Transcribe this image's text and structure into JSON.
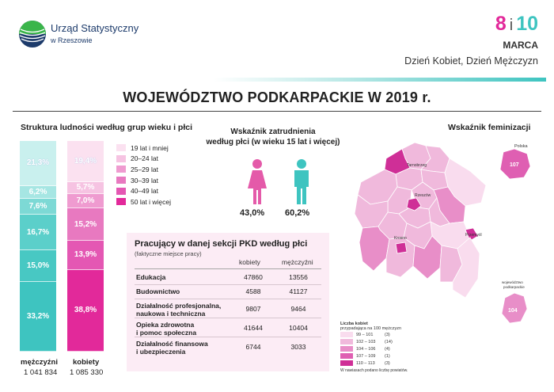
{
  "header": {
    "org_name": "Urząd Statystyczny",
    "org_sub": "w Rzeszowie",
    "date_8": "8",
    "date_i": "i",
    "date_10": "10",
    "month": "MARCA",
    "day_title": "Dzień Kobiet, Dzień Mężczyzn"
  },
  "main_title": "WOJEWÓDZTWO PODKARPACKIE W 2019 r.",
  "structure": {
    "title": "Struktura ludności według grup wieku i płci",
    "men": {
      "label": "mężczyźni",
      "count": "1 041 834",
      "segments": [
        "21,3%",
        "6,2%",
        "7,6%",
        "16,7%",
        "15,0%",
        "33,2%"
      ]
    },
    "women": {
      "label": "kobiety",
      "count": "1 085 330",
      "segments": [
        "19,4%",
        "5,7%",
        "7,0%",
        "15,2%",
        "13,9%",
        "38,8%"
      ]
    },
    "legend": [
      "19 lat i mniej",
      "20–24 lat",
      "25–29 lat",
      "30–39 lat",
      "40–49 lat",
      "50 lat i więcej"
    ],
    "men_colors": [
      "#c9f0ee",
      "#a6e6e3",
      "#7dd9d5",
      "#5bcfca",
      "#48c8c3",
      "#3ec4c0"
    ],
    "women_colors": [
      "#fbe1f0",
      "#f6c3e2",
      "#ef9bd0",
      "#e879c0",
      "#e457b3",
      "#e2299a"
    ]
  },
  "employment": {
    "title_1": "Wskaźnik zatrudnienia",
    "title_2": "według płci (w wieku 15 lat i więcej)",
    "women_value": "43,0%",
    "men_value": "60,2%"
  },
  "table": {
    "title": "Pracujący w danej sekcji PKD według płci",
    "subtitle": "(faktyczne miejsce pracy)",
    "col_women": "kobiety",
    "col_men": "mężczyźni",
    "rows": [
      {
        "label_1": "Edukacja",
        "label_2": "",
        "women": "47860",
        "men": "13556"
      },
      {
        "label_1": "Budownictwo",
        "label_2": "",
        "women": "4588",
        "men": "41127"
      },
      {
        "label_1": "Działalność profesjonalna,",
        "label_2": "naukowa i techniczna",
        "women": "9807",
        "men": "9464"
      },
      {
        "label_1": "Opieka zdrowotna",
        "label_2": "i pomoc społeczna",
        "women": "41644",
        "men": "10404"
      },
      {
        "label_1": "Działalność finansowa",
        "label_2": "i ubezpieczenia",
        "women": "6744",
        "men": "3033"
      }
    ]
  },
  "map": {
    "title": "Wskaźnik feminizacji",
    "poland_label": "Polska",
    "poland_value": "107",
    "region_label_1": "województwo",
    "region_label_2": "podkarpackie",
    "region_value": "104",
    "cities": [
      "Tarnobrzeg",
      "Rzeszów",
      "Krosno",
      "Przemyśl"
    ],
    "districts": [
      "stalowowolski",
      "niżański",
      "tarnobrzeski",
      "kolbuszowski",
      "leżajski",
      "lubaczowski",
      "mielecki",
      "jarosławski",
      "ropczycko-sędziszowski",
      "łańcucki",
      "rzeszowski",
      "przeworski",
      "dębicki",
      "strzyżowski",
      "przemyski",
      "jasielski",
      "krośnieński",
      "brzozowski",
      "sanocki",
      "leski",
      "bieszczadzki"
    ],
    "legend_title_1": "Liczba kobiet",
    "legend_title_2": "przypadająca na 100 mężczyzn",
    "legend": [
      {
        "range": "99 – 101",
        "count": "(3)",
        "color": "#f9dcee"
      },
      {
        "range": "102 – 103",
        "count": "(14)",
        "color": "#f0b9dc"
      },
      {
        "range": "104 – 106",
        "count": "(4)",
        "color": "#e88ec8"
      },
      {
        "range": "107 – 109",
        "count": "(1)",
        "color": "#df5fb2"
      },
      {
        "range": "110 – 113",
        "count": "(3)",
        "color": "#cf2f97"
      }
    ],
    "footnote": "W nawiasach podano liczbę powiatów."
  }
}
